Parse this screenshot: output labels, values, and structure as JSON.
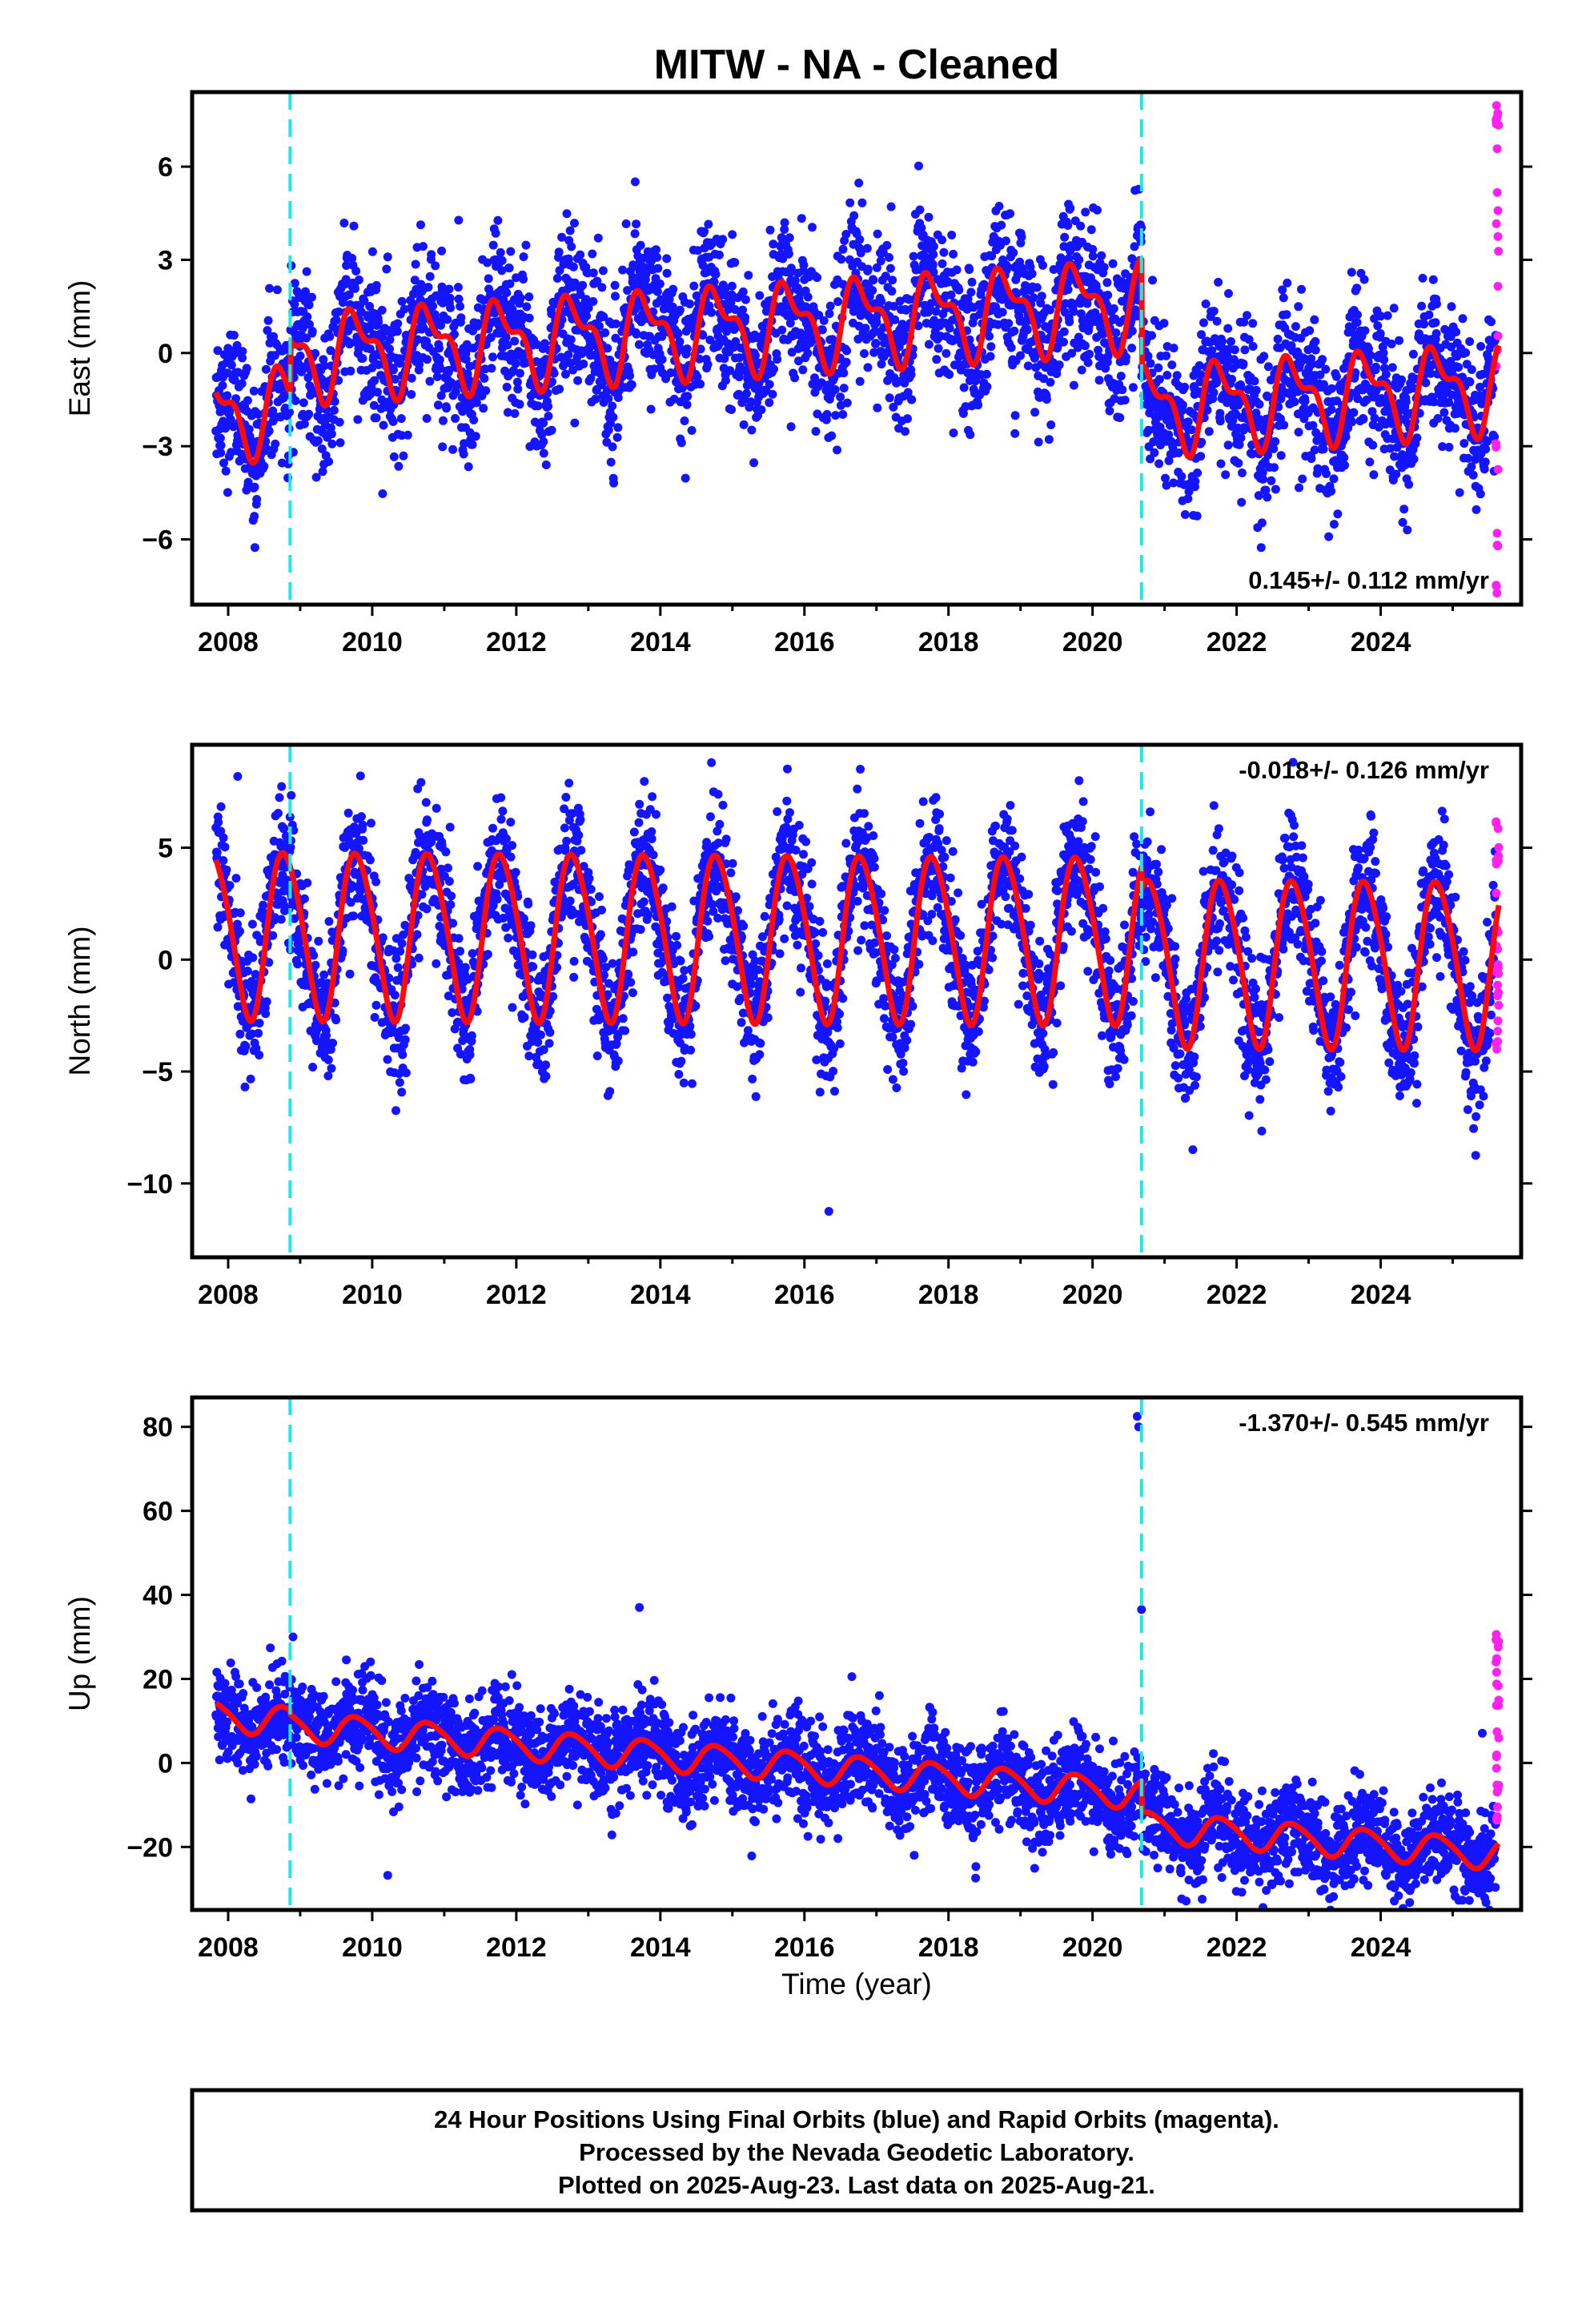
{
  "title": "MITW  - NA - Cleaned",
  "xlabel": "Time (year)",
  "colors": {
    "final": "#1414ff",
    "rapid": "#ff22ee",
    "model": "#ff0a0a",
    "offset": "#22e5e5"
  },
  "footer": [
    "24 Hour Positions Using Final Orbits (blue) and Rapid Orbits (magenta).",
    "Processed by the Nevada Geodetic Laboratory.",
    "Plotted on 2025-Aug-23. Last data on 2025-Aug-21."
  ],
  "chart_data": [
    {
      "type": "scatter",
      "component": "East",
      "ylabel": "East (mm)",
      "xlim": [
        2007.5,
        2025.95
      ],
      "ylim": [
        -8.1,
        8.4
      ],
      "x_ticks": [
        "2008",
        "2010",
        "2012",
        "2014",
        "2016",
        "2018",
        "2020",
        "2022",
        "2024"
      ],
      "y_ticks": [
        "6",
        "3",
        "0",
        "−3",
        "−6"
      ],
      "y_tick_values": [
        6,
        3,
        0,
        -3,
        -6
      ],
      "rate_label": "0.145+/- 0.112 mm/yr",
      "rate_position": "bottom-right",
      "data_start": 2007.83,
      "data_end": 2025.64,
      "offsets": [
        2008.86,
        2020.68
      ],
      "segments": [
        {
          "start": 2007.83,
          "end": 2008.86,
          "mean": -1.9,
          "trend": 0.145,
          "annual": 1.2,
          "semiannual": 0.6
        },
        {
          "start": 2008.86,
          "end": 2020.68,
          "mean": -0.2,
          "trend": 0.145,
          "annual": 1.2,
          "semiannual": 0.6
        },
        {
          "start": 2020.68,
          "end": 2025.64,
          "mean": -3.6,
          "trend": 0.145,
          "annual": 1.2,
          "semiannual": 0.6
        }
      ],
      "scatter_noise": 1.2,
      "rapid_range": [
        -8.0,
        8.0
      ],
      "model_series_name": "model"
    },
    {
      "type": "scatter",
      "component": "North",
      "ylabel": "North (mm)",
      "xlim": [
        2007.5,
        2025.95
      ],
      "ylim": [
        -13.3,
        9.6
      ],
      "x_ticks": [
        "2008",
        "2010",
        "2012",
        "2014",
        "2016",
        "2018",
        "2020",
        "2022",
        "2024"
      ],
      "y_ticks": [
        "5",
        "0",
        "−5",
        "−10"
      ],
      "y_tick_values": [
        5,
        0,
        -5,
        -10
      ],
      "rate_label": "-0.018+/- 0.126 mm/yr",
      "rate_position": "top-right",
      "data_start": 2007.83,
      "data_end": 2025.64,
      "offsets": [
        2008.86,
        2020.68
      ],
      "segments": [
        {
          "start": 2007.83,
          "end": 2008.86,
          "mean": 1.2,
          "trend": -0.018,
          "annual": 3.7,
          "semiannual": 0.4
        },
        {
          "start": 2008.86,
          "end": 2020.68,
          "mean": 1.2,
          "trend": -0.018,
          "annual": 3.7,
          "semiannual": 0.4
        },
        {
          "start": 2020.68,
          "end": 2025.64,
          "mean": 0.2,
          "trend": -0.018,
          "annual": 3.7,
          "semiannual": 0.4
        }
      ],
      "scatter_noise": 1.5,
      "rapid_range": [
        -5.2,
        6.5
      ],
      "model_series_name": "model"
    },
    {
      "type": "scatter",
      "component": "Up",
      "ylabel": "Up (mm)",
      "xlim": [
        2007.5,
        2025.95
      ],
      "ylim": [
        -35,
        87
      ],
      "x_ticks": [
        "2008",
        "2010",
        "2012",
        "2014",
        "2016",
        "2018",
        "2020",
        "2022",
        "2024"
      ],
      "y_ticks": [
        "80",
        "60",
        "40",
        "20",
        "0",
        "−20"
      ],
      "y_tick_values": [
        80,
        60,
        40,
        20,
        0,
        -20
      ],
      "rate_label": "-1.370+/- 0.545 mm/yr",
      "rate_position": "top-right",
      "data_start": 2007.83,
      "data_end": 2025.64,
      "offsets": [
        2008.86,
        2020.68
      ],
      "segments": [
        {
          "start": 2007.83,
          "end": 2008.86,
          "mean": 11.0,
          "trend": -1.37,
          "annual": 3.5,
          "semiannual": 0.5
        },
        {
          "start": 2008.86,
          "end": 2020.68,
          "mean": 10.0,
          "trend": -1.37,
          "annual": 3.5,
          "semiannual": 0.5
        },
        {
          "start": 2020.68,
          "end": 2025.64,
          "mean": 2.4,
          "trend": -1.37,
          "annual": 3.5,
          "semiannual": 0.5
        }
      ],
      "scatter_noise": 5.5,
      "rapid_range": [
        -14,
        31
      ],
      "outliers": [
        [
          2020.62,
          82.5
        ],
        [
          2020.64,
          80.0
        ],
        [
          2020.68,
          36.5
        ],
        [
          2008.9,
          30.0
        ]
      ],
      "model_series_name": "model"
    }
  ]
}
